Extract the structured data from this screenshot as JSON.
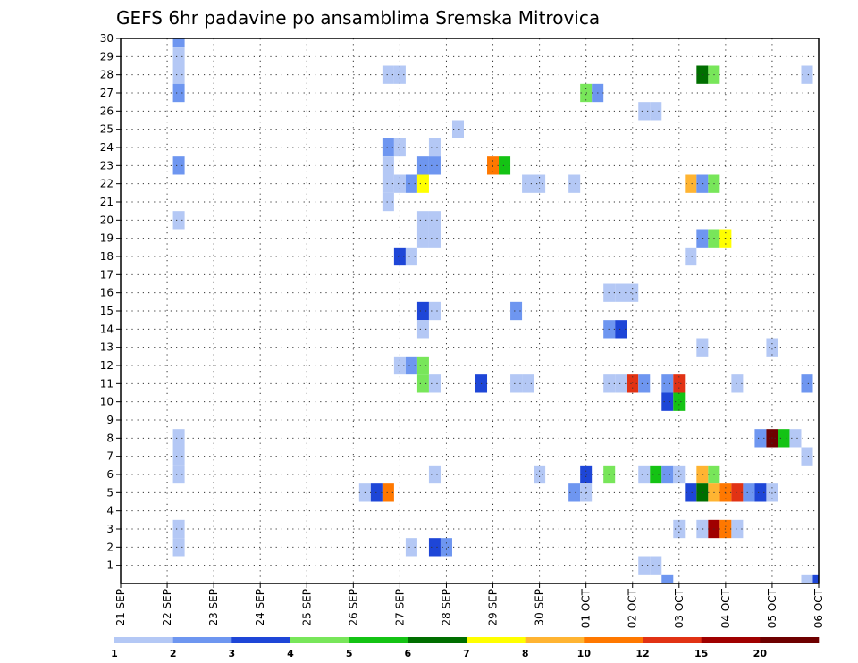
{
  "chart_data": {
    "type": "heatmap",
    "title": "GEFS 6hr padavine po ansamblima Sremska Mitrovica",
    "xlabel": "",
    "ylabel": "",
    "x_tick_labels": [
      "21 SEP",
      "22 SEP",
      "23 SEP",
      "24 SEP",
      "25 SEP",
      "26 SEP",
      "27 SEP",
      "28 SEP",
      "29 SEP",
      "30 SEP",
      "01 OCT",
      "02 OCT",
      "03 OCT",
      "04 OCT",
      "05 OCT",
      "06 OCT"
    ],
    "xlim": [
      0,
      60
    ],
    "ylim": [
      0,
      30
    ],
    "y_tick_labels": [
      "1",
      "2",
      "3",
      "4",
      "5",
      "6",
      "7",
      "8",
      "9",
      "10",
      "11",
      "12",
      "13",
      "14",
      "15",
      "16",
      "17",
      "18",
      "19",
      "20",
      "21",
      "22",
      "23",
      "24",
      "25",
      "26",
      "27",
      "28",
      "29",
      "30"
    ],
    "grid": true,
    "legend": {
      "position": "bottom",
      "tick_labels": [
        "1",
        "2",
        "3",
        "4",
        "5",
        "6",
        "7",
        "8",
        "10",
        "12",
        "15",
        "20"
      ],
      "colors": [
        "#b4c8f5",
        "#6e96f0",
        "#1e46d7",
        "#78e65a",
        "#14c314",
        "#006e00",
        "#ffff00",
        "#ffb432",
        "#ff7800",
        "#e13214",
        "#a00000",
        "#6e0000"
      ]
    },
    "cells": [
      {
        "x": 5,
        "y": 30,
        "c": 1
      },
      {
        "x": 5,
        "y": 29,
        "c": 0
      },
      {
        "x": 5,
        "y": 28,
        "c": 0
      },
      {
        "x": 5,
        "y": 27,
        "c": 1
      },
      {
        "x": 5,
        "y": 23,
        "c": 1
      },
      {
        "x": 5,
        "y": 20,
        "c": 0
      },
      {
        "x": 5,
        "y": 8,
        "c": 0
      },
      {
        "x": 5,
        "y": 7,
        "c": 0
      },
      {
        "x": 5,
        "y": 6,
        "c": 0
      },
      {
        "x": 5,
        "y": 3,
        "c": 0
      },
      {
        "x": 5,
        "y": 2,
        "c": 0
      },
      {
        "x": 23,
        "y": 28,
        "c": 0
      },
      {
        "x": 24,
        "y": 28,
        "c": 0
      },
      {
        "x": 23,
        "y": 24,
        "c": 1
      },
      {
        "x": 24,
        "y": 24,
        "c": 0
      },
      {
        "x": 23,
        "y": 23,
        "c": 0
      },
      {
        "x": 23,
        "y": 22,
        "c": 0
      },
      {
        "x": 23,
        "y": 21,
        "c": 0
      },
      {
        "x": 24,
        "y": 22,
        "c": 0
      },
      {
        "x": 25,
        "y": 22,
        "c": 1
      },
      {
        "x": 26,
        "y": 22,
        "c": 6
      },
      {
        "x": 27,
        "y": 24,
        "c": 0
      },
      {
        "x": 26,
        "y": 23,
        "c": 1
      },
      {
        "x": 27,
        "y": 23,
        "c": 1
      },
      {
        "x": 26,
        "y": 20,
        "c": 0
      },
      {
        "x": 27,
        "y": 20,
        "c": 0
      },
      {
        "x": 26,
        "y": 19,
        "c": 0
      },
      {
        "x": 27,
        "y": 19,
        "c": 0
      },
      {
        "x": 24,
        "y": 18,
        "c": 2
      },
      {
        "x": 25,
        "y": 18,
        "c": 0
      },
      {
        "x": 29,
        "y": 25,
        "c": 0
      },
      {
        "x": 32,
        "y": 23,
        "c": 8
      },
      {
        "x": 33,
        "y": 23,
        "c": 4
      },
      {
        "x": 35,
        "y": 22,
        "c": 0
      },
      {
        "x": 36,
        "y": 22,
        "c": 0
      },
      {
        "x": 39,
        "y": 22,
        "c": 0
      },
      {
        "x": 40,
        "y": 27,
        "c": 3
      },
      {
        "x": 41,
        "y": 27,
        "c": 1
      },
      {
        "x": 45,
        "y": 26,
        "c": 0
      },
      {
        "x": 46,
        "y": 26,
        "c": 0
      },
      {
        "x": 50,
        "y": 28,
        "c": 5
      },
      {
        "x": 51,
        "y": 28,
        "c": 3
      },
      {
        "x": 59,
        "y": 28,
        "c": 0
      },
      {
        "x": 49,
        "y": 22,
        "c": 7
      },
      {
        "x": 50,
        "y": 22,
        "c": 1
      },
      {
        "x": 51,
        "y": 22,
        "c": 3
      },
      {
        "x": 50,
        "y": 19,
        "c": 1
      },
      {
        "x": 51,
        "y": 19,
        "c": 3
      },
      {
        "x": 52,
        "y": 19,
        "c": 6
      },
      {
        "x": 49,
        "y": 18,
        "c": 0
      },
      {
        "x": 42,
        "y": 16,
        "c": 0
      },
      {
        "x": 43,
        "y": 16,
        "c": 0
      },
      {
        "x": 44,
        "y": 16,
        "c": 0
      },
      {
        "x": 26,
        "y": 15,
        "c": 2
      },
      {
        "x": 27,
        "y": 15,
        "c": 0
      },
      {
        "x": 34,
        "y": 15,
        "c": 1
      },
      {
        "x": 26,
        "y": 14,
        "c": 0
      },
      {
        "x": 42,
        "y": 14,
        "c": 1
      },
      {
        "x": 43,
        "y": 14,
        "c": 2
      },
      {
        "x": 50,
        "y": 13,
        "c": 0
      },
      {
        "x": 56,
        "y": 13,
        "c": 0
      },
      {
        "x": 24,
        "y": 12,
        "c": 0
      },
      {
        "x": 25,
        "y": 12,
        "c": 1
      },
      {
        "x": 26,
        "y": 12,
        "c": 3
      },
      {
        "x": 26,
        "y": 11,
        "c": 3
      },
      {
        "x": 27,
        "y": 11,
        "c": 0
      },
      {
        "x": 31,
        "y": 11,
        "c": 2
      },
      {
        "x": 34,
        "y": 11,
        "c": 0
      },
      {
        "x": 35,
        "y": 11,
        "c": 0
      },
      {
        "x": 42,
        "y": 11,
        "c": 0
      },
      {
        "x": 43,
        "y": 11,
        "c": 0
      },
      {
        "x": 44,
        "y": 11,
        "c": 9
      },
      {
        "x": 45,
        "y": 11,
        "c": 1
      },
      {
        "x": 47,
        "y": 11,
        "c": 1
      },
      {
        "x": 48,
        "y": 11,
        "c": 9
      },
      {
        "x": 53,
        "y": 11,
        "c": 0
      },
      {
        "x": 59,
        "y": 11,
        "c": 1
      },
      {
        "x": 47,
        "y": 10,
        "c": 2
      },
      {
        "x": 48,
        "y": 10,
        "c": 4
      },
      {
        "x": 55,
        "y": 8,
        "c": 1
      },
      {
        "x": 56,
        "y": 8,
        "c": 11
      },
      {
        "x": 57,
        "y": 8,
        "c": 4
      },
      {
        "x": 58,
        "y": 8,
        "c": 0
      },
      {
        "x": 59,
        "y": 7,
        "c": 0
      },
      {
        "x": 27,
        "y": 6,
        "c": 0
      },
      {
        "x": 36,
        "y": 6,
        "c": 0
      },
      {
        "x": 40,
        "y": 6,
        "c": 2
      },
      {
        "x": 42,
        "y": 6,
        "c": 3
      },
      {
        "x": 45,
        "y": 6,
        "c": 0
      },
      {
        "x": 46,
        "y": 6,
        "c": 4
      },
      {
        "x": 47,
        "y": 6,
        "c": 1
      },
      {
        "x": 48,
        "y": 6,
        "c": 0
      },
      {
        "x": 50,
        "y": 6,
        "c": 7
      },
      {
        "x": 51,
        "y": 6,
        "c": 3
      },
      {
        "x": 21,
        "y": 5,
        "c": 0
      },
      {
        "x": 22,
        "y": 5,
        "c": 2
      },
      {
        "x": 23,
        "y": 5,
        "c": 8
      },
      {
        "x": 39,
        "y": 5,
        "c": 1
      },
      {
        "x": 40,
        "y": 5,
        "c": 0
      },
      {
        "x": 49,
        "y": 5,
        "c": 2
      },
      {
        "x": 50,
        "y": 5,
        "c": 5
      },
      {
        "x": 51,
        "y": 5,
        "c": 7
      },
      {
        "x": 52,
        "y": 5,
        "c": 8
      },
      {
        "x": 53,
        "y": 5,
        "c": 9
      },
      {
        "x": 54,
        "y": 5,
        "c": 1
      },
      {
        "x": 55,
        "y": 5,
        "c": 2
      },
      {
        "x": 56,
        "y": 5,
        "c": 0
      },
      {
        "x": 48,
        "y": 3,
        "c": 0
      },
      {
        "x": 50,
        "y": 3,
        "c": 0
      },
      {
        "x": 51,
        "y": 3,
        "c": 10
      },
      {
        "x": 52,
        "y": 3,
        "c": 8
      },
      {
        "x": 53,
        "y": 3,
        "c": 0
      },
      {
        "x": 25,
        "y": 2,
        "c": 0
      },
      {
        "x": 27,
        "y": 2,
        "c": 2
      },
      {
        "x": 28,
        "y": 2,
        "c": 1
      },
      {
        "x": 45,
        "y": 1,
        "c": 0
      },
      {
        "x": 46,
        "y": 1,
        "c": 0
      },
      {
        "x": 47,
        "y": 0,
        "c": 1
      },
      {
        "x": 59,
        "y": 0,
        "c": 0
      },
      {
        "x": 60,
        "y": 0,
        "c": 2
      }
    ]
  }
}
